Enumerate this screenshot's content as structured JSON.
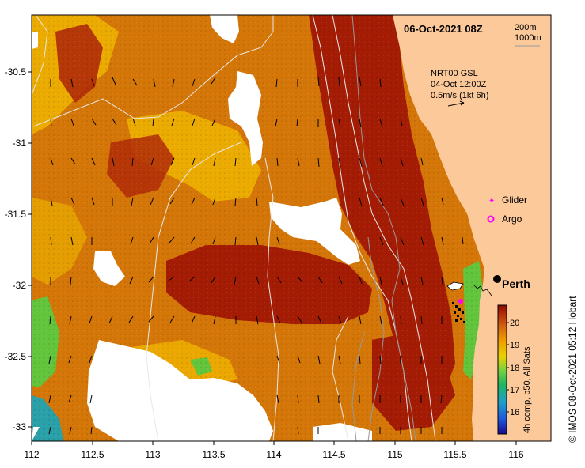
{
  "map": {
    "date_label": "06-Oct-2021 08Z",
    "contour_labels": [
      "200m",
      "1000m"
    ],
    "source": {
      "line1": "NRT00 GSL",
      "line2": "04-Oct 12:00Z",
      "line3": "0.5m/s (1kt 6h)"
    },
    "legend": {
      "glider_label": "Glider",
      "argo_label": "Argo",
      "city_label": "Perth",
      "glider_color": "#ff00ff",
      "argo_color": "#ff00ff"
    },
    "colorbar": {
      "ticks": [
        "20",
        "19",
        "18",
        "17",
        "16"
      ],
      "caption": "4h comp, p50, All Sats"
    },
    "credit": "© IMOS 08-Oct-2021 05:12 Hobart",
    "x_axis": {
      "ticks": [
        "112",
        "112.5",
        "113",
        "113.5",
        "114",
        "114.5",
        "115",
        "115.5",
        "116"
      ]
    },
    "y_axis": {
      "ticks": [
        "-30.5",
        "-31",
        "-31.5",
        "-32",
        "-32.5",
        "-33"
      ]
    },
    "colors": {
      "land": "#fcc99a",
      "hot": "#a51c05",
      "warm": "#d57708",
      "mid": "#f0b400",
      "cool": "#62c53c",
      "cold": "#2aa0a8"
    }
  }
}
